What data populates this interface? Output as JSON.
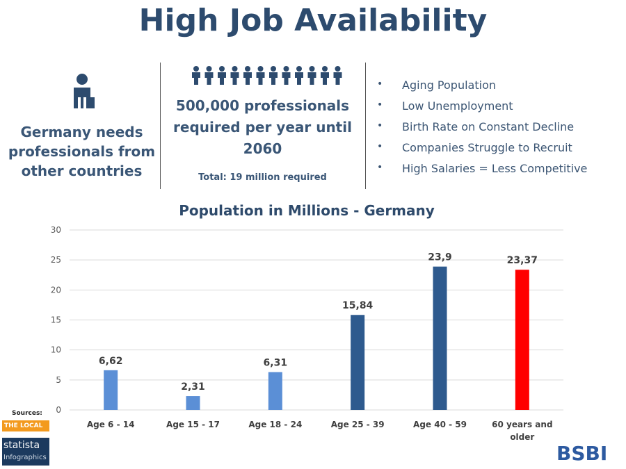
{
  "header": {
    "title": "High Job Availability"
  },
  "left_panel": {
    "text": "Germany needs professionals from other countries"
  },
  "middle_panel": {
    "text": "500,000 professionals required per year until 2060",
    "note": "Total: 19 million required"
  },
  "bullets": [
    "Aging Population",
    "Low Unemployment",
    "Birth Rate on Constant Decline",
    "Companies Struggle to Recruit",
    "High Salaries = Less Competitive"
  ],
  "sources": {
    "label": "Sources:",
    "local": "THE LOCAL",
    "statista": "statista",
    "statista_sub": "Infographics"
  },
  "logo": "BSBI",
  "chart_data": {
    "type": "bar",
    "title": "Population in Millions - Germany",
    "categories": [
      "Age 6 - 14",
      "Age 15 - 17",
      "Age 18 - 24",
      "Age 25 - 39",
      "Age 40 - 59",
      "60 years and older"
    ],
    "values": [
      6.62,
      2.31,
      6.31,
      15.84,
      23.9,
      23.37
    ],
    "value_labels": [
      "6,62",
      "2,31",
      "6,31",
      "15,84",
      "23,9",
      "23,37"
    ],
    "colors": [
      "#5b8fd6",
      "#5b8fd6",
      "#5b8fd6",
      "#2e5a8e",
      "#2e5a8e",
      "#ff0000"
    ],
    "ylim": [
      0,
      30
    ],
    "yticks": [
      0,
      5,
      10,
      15,
      20,
      25,
      30
    ],
    "grid": true
  }
}
